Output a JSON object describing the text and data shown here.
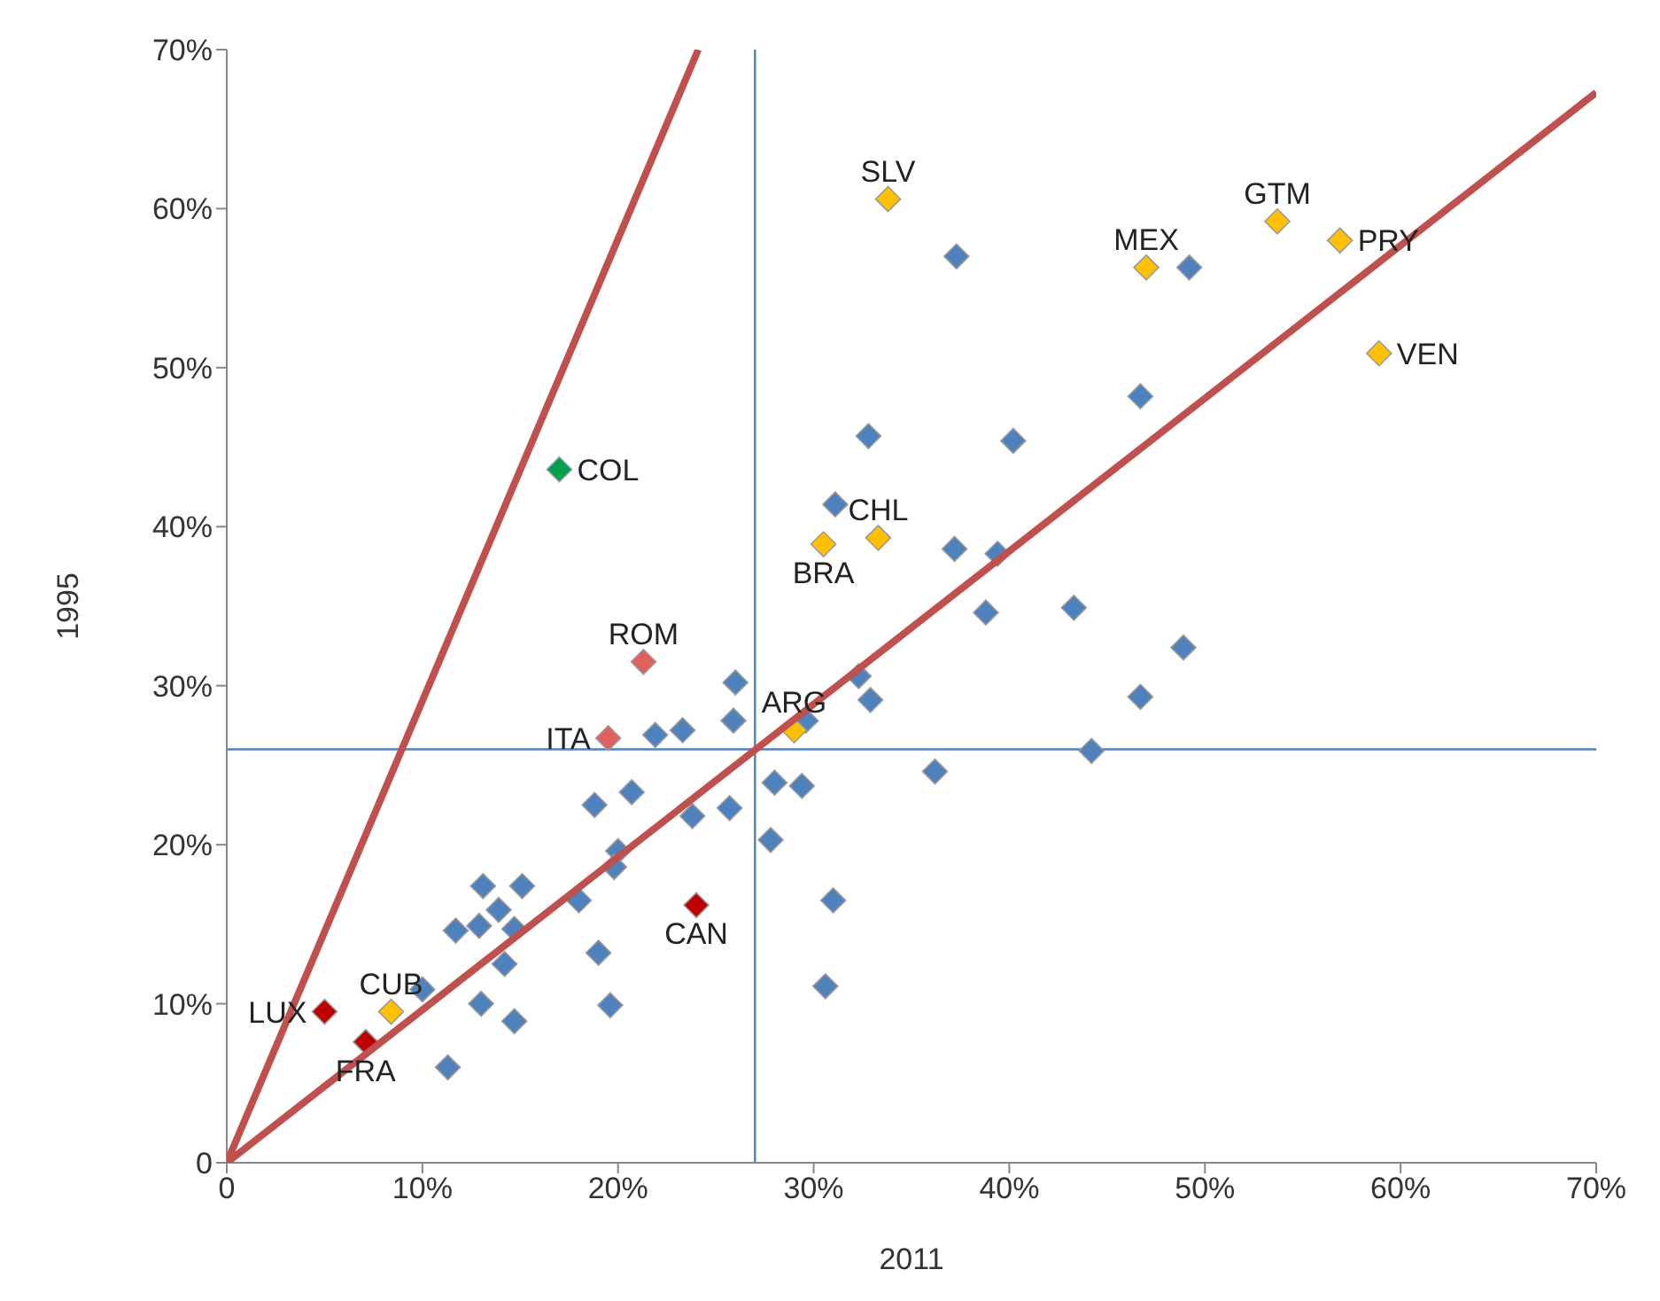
{
  "chart_data": {
    "type": "scatter",
    "xlabel": "2011",
    "ylabel": "1995",
    "xlim": [
      0,
      70
    ],
    "ylim": [
      0,
      70
    ],
    "xticks": [
      0,
      {
        "value": 10,
        "label": "10%"
      },
      {
        "value": 20,
        "label": "20%"
      },
      {
        "value": 30,
        "label": "30%"
      },
      {
        "value": 40,
        "label": "40%"
      },
      {
        "value": 50,
        "label": "50%"
      },
      {
        "value": 60,
        "label": "60%"
      },
      {
        "value": 70,
        "label": "70%"
      }
    ],
    "yticks": [
      0,
      {
        "value": 10,
        "label": "10%"
      },
      {
        "value": 20,
        "label": "20%"
      },
      {
        "value": 30,
        "label": "30%"
      },
      {
        "value": 40,
        "label": "40%"
      },
      {
        "value": 50,
        "label": "50%"
      },
      {
        "value": 60,
        "label": "60%"
      },
      {
        "value": 70,
        "label": "70%"
      }
    ],
    "grid": false,
    "legend": false,
    "marker": "diamond",
    "series": [
      {
        "color": "#4f81bd",
        "x": [
          37.3,
          49.2,
          46.7,
          40.2,
          32.8,
          31.1,
          37.2,
          39.4,
          38.8,
          43.3,
          48.9,
          46.7,
          44.2,
          36.2,
          32.3,
          32.9,
          26.0,
          25.9,
          23.3,
          21.9,
          18.8,
          20.7,
          20.0,
          19.8,
          23.8,
          25.7,
          28.0,
          29.4,
          27.8,
          31.0,
          30.6,
          18.0,
          19.0,
          19.6,
          13.1,
          15.1,
          13.9,
          12.9,
          14.7,
          14.2,
          11.7,
          13.0,
          14.7,
          10.0,
          11.3,
          29.6
        ],
        "values": [
          57.0,
          56.3,
          48.2,
          45.4,
          45.7,
          41.4,
          38.6,
          38.3,
          34.6,
          34.9,
          32.4,
          29.3,
          25.9,
          24.6,
          30.6,
          29.1,
          30.2,
          27.8,
          27.2,
          26.9,
          22.5,
          23.3,
          19.6,
          18.6,
          21.8,
          22.3,
          23.9,
          23.7,
          20.3,
          16.5,
          11.1,
          16.5,
          13.2,
          9.9,
          17.4,
          17.4,
          15.9,
          14.9,
          14.7,
          12.5,
          14.6,
          10.0,
          8.9,
          10.9,
          6.0,
          27.8
        ]
      },
      {
        "color": "#ffc000",
        "x": [
          33.8,
          47.0,
          53.7,
          56.9,
          58.9,
          33.3,
          30.5,
          29.0,
          8.4
        ],
        "values": [
          60.6,
          56.3,
          59.2,
          58.0,
          50.9,
          39.3,
          38.9,
          27.2,
          9.5
        ]
      },
      {
        "color": "#c00000",
        "x": [
          5.0,
          7.1,
          24.0
        ],
        "values": [
          9.5,
          7.6,
          16.2
        ]
      },
      {
        "color": "#e06060",
        "x": [
          21.3,
          19.5
        ],
        "values": [
          31.5,
          26.7
        ]
      },
      {
        "color": "#00a050",
        "x": [
          17.0
        ],
        "values": [
          43.6
        ]
      },
      {
        "type": "line",
        "color": "#c0504d",
        "marker": "none",
        "x": [
          0,
          24.1
        ],
        "values": [
          0,
          70
        ]
      },
      {
        "type": "line",
        "color": "#c0504d",
        "marker": "none",
        "x": [
          0,
          70
        ],
        "values": [
          0,
          67.3
        ]
      }
    ],
    "ref_lines": [
      {
        "axis": "x",
        "value": 27,
        "color": "#4f81bd"
      },
      {
        "axis": "y",
        "value": 26,
        "color": "#4f81bd"
      }
    ],
    "annotations": [
      {
        "text": "SLV",
        "x": 33.8,
        "y": 60.6
      },
      {
        "text": "MEX",
        "x": 47.0,
        "y": 56.3
      },
      {
        "text": "GTM",
        "x": 53.7,
        "y": 59.2
      },
      {
        "text": "PRY",
        "x": 56.9,
        "y": 58.0
      },
      {
        "text": "VEN",
        "x": 58.9,
        "y": 50.9
      },
      {
        "text": "CHL",
        "x": 33.3,
        "y": 39.3
      },
      {
        "text": "BRA",
        "x": 30.5,
        "y": 38.9
      },
      {
        "text": "ARG",
        "x": 29.0,
        "y": 27.2
      },
      {
        "text": "CUB",
        "x": 8.4,
        "y": 9.5
      },
      {
        "text": "LUX",
        "x": 5.0,
        "y": 9.5
      },
      {
        "text": "FRA",
        "x": 7.1,
        "y": 7.6
      },
      {
        "text": "CAN",
        "x": 24.0,
        "y": 16.2
      },
      {
        "text": "ROM",
        "x": 21.3,
        "y": 31.5
      },
      {
        "text": "ITA",
        "x": 19.5,
        "y": 26.7
      },
      {
        "text": "COL",
        "x": 17.0,
        "y": 43.6
      }
    ]
  }
}
